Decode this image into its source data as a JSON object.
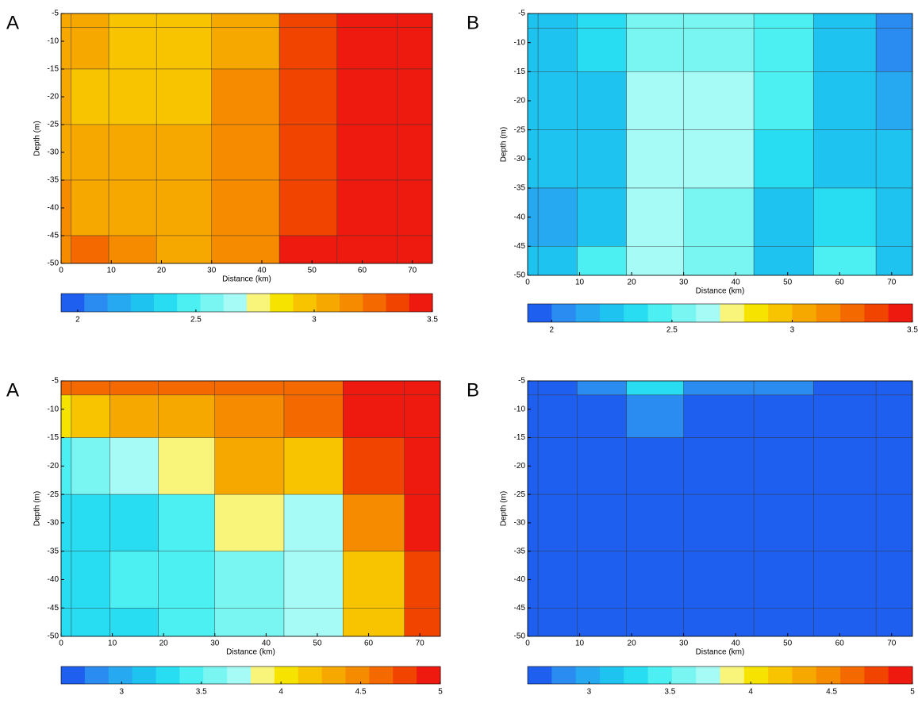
{
  "chart_data": [
    {
      "type": "contour",
      "label": "A",
      "xlabel": "Distance (km)",
      "ylabel": "Depth (m)",
      "x": [
        0,
        4,
        15,
        23,
        37,
        50,
        60,
        74
      ],
      "y": [
        -5,
        -10,
        -20,
        -30,
        -40,
        -50
      ],
      "z": [
        [
          3.05,
          3.02,
          2.95,
          3.0,
          3.1,
          3.4,
          3.45,
          3.45
        ],
        [
          3.05,
          3.02,
          2.93,
          2.98,
          3.1,
          3.35,
          3.45,
          3.45
        ],
        [
          3.05,
          3.0,
          2.93,
          3.0,
          3.12,
          3.35,
          3.5,
          3.48
        ],
        [
          3.08,
          3.05,
          3.02,
          3.05,
          3.15,
          3.38,
          3.48,
          3.48
        ],
        [
          3.12,
          3.1,
          3.08,
          3.08,
          3.18,
          3.4,
          3.48,
          3.48
        ],
        [
          3.2,
          3.25,
          3.15,
          3.1,
          3.2,
          3.42,
          3.48,
          3.48
        ]
      ],
      "xlim": [
        0,
        74
      ],
      "ylim": [
        -50,
        -5
      ],
      "xticks": [
        0,
        10,
        20,
        30,
        40,
        50,
        60,
        70
      ],
      "yticks": [
        -5,
        -10,
        -15,
        -20,
        -25,
        -30,
        -35,
        -40,
        -45,
        -50
      ],
      "clim": [
        1.93,
        3.5
      ],
      "cticks": [
        2,
        2.5,
        3,
        3.5
      ],
      "colors": [
        "#1f5ff0",
        "#2a8bf0",
        "#26a9f0",
        "#1fc3f0",
        "#28dcf2",
        "#4df0f2",
        "#7af6f2",
        "#a6fbf6",
        "#f9f57a",
        "#f6e400",
        "#f8c400",
        "#f7a800",
        "#f68b00",
        "#f46a00",
        "#f04400",
        "#ee1a10"
      ]
    },
    {
      "type": "contour",
      "label": "B",
      "xlabel": "Distance (km)",
      "ylabel": "Depth (m)",
      "x": [
        0,
        4,
        15,
        23,
        37,
        50,
        60,
        74
      ],
      "y": [
        -5,
        -10,
        -20,
        -30,
        -40,
        -50
      ],
      "z": [
        [
          2.3,
          2.3,
          2.35,
          2.55,
          2.55,
          2.4,
          2.2,
          2.0
        ],
        [
          2.3,
          2.3,
          2.35,
          2.55,
          2.55,
          2.4,
          2.25,
          2.05
        ],
        [
          2.3,
          2.25,
          2.3,
          2.62,
          2.6,
          2.4,
          2.3,
          2.15
        ],
        [
          2.2,
          2.2,
          2.3,
          2.62,
          2.6,
          2.35,
          2.3,
          2.2
        ],
        [
          2.1,
          2.15,
          2.3,
          2.6,
          2.55,
          2.2,
          2.35,
          2.25
        ],
        [
          2.2,
          2.3,
          2.45,
          2.6,
          2.55,
          2.3,
          2.4,
          2.3
        ]
      ],
      "xlim": [
        0,
        74
      ],
      "ylim": [
        -50,
        -5
      ],
      "xticks": [
        0,
        10,
        20,
        30,
        40,
        50,
        60,
        70
      ],
      "yticks": [
        -5,
        -10,
        -15,
        -20,
        -25,
        -30,
        -35,
        -40,
        -45,
        -50
      ],
      "clim": [
        1.9,
        3.5
      ],
      "cticks": [
        2,
        2.5,
        3,
        3.5
      ],
      "colors": [
        "#1f5ff0",
        "#2a8bf0",
        "#26a9f0",
        "#1fc3f0",
        "#28dcf2",
        "#4df0f2",
        "#7af6f2",
        "#a6fbf6",
        "#f9f57a",
        "#f6e400",
        "#f8c400",
        "#f7a800",
        "#f68b00",
        "#f46a00",
        "#f04400",
        "#ee1a10"
      ]
    },
    {
      "type": "contour",
      "label": "A",
      "xlabel": "Distance (km)",
      "ylabel": "Depth (m)",
      "x": [
        0,
        4,
        15,
        23,
        37,
        50,
        60,
        74
      ],
      "y": [
        -5,
        -10,
        -20,
        -30,
        -40,
        -50
      ],
      "z": [
        [
          4.6,
          4.7,
          4.6,
          4.7,
          4.6,
          4.7,
          5.0,
          5.0
        ],
        [
          4.0,
          4.2,
          4.3,
          4.4,
          4.5,
          4.6,
          5.0,
          5.0
        ],
        [
          3.5,
          3.6,
          3.7,
          3.9,
          4.3,
          4.2,
          4.8,
          5.0
        ],
        [
          3.35,
          3.3,
          3.35,
          3.5,
          3.9,
          3.7,
          4.5,
          4.9
        ],
        [
          3.3,
          3.3,
          3.4,
          3.45,
          3.6,
          3.7,
          4.2,
          4.8
        ],
        [
          3.3,
          3.3,
          3.35,
          3.4,
          3.55,
          3.7,
          4.2,
          4.8
        ]
      ],
      "xlim": [
        0,
        74
      ],
      "ylim": [
        -50,
        -5
      ],
      "xticks": [
        0,
        10,
        20,
        30,
        40,
        50,
        60,
        70
      ],
      "yticks": [
        -5,
        -10,
        -15,
        -20,
        -25,
        -30,
        -35,
        -40,
        -45,
        -50
      ],
      "clim": [
        2.62,
        5
      ],
      "cticks": [
        3,
        3.5,
        4,
        4.5,
        5
      ],
      "colors": [
        "#1f5ff0",
        "#2a8bf0",
        "#26a9f0",
        "#1fc3f0",
        "#28dcf2",
        "#4df0f2",
        "#7af6f2",
        "#a6fbf6",
        "#f9f57a",
        "#f6e400",
        "#f8c400",
        "#f7a800",
        "#f68b00",
        "#f46a00",
        "#f04400",
        "#ee1a10"
      ]
    },
    {
      "type": "contour",
      "label": "B",
      "xlabel": "Distance (km)",
      "ylabel": "Depth (m)",
      "x": [
        0,
        4,
        15,
        23,
        37,
        50,
        60,
        74
      ],
      "y": [
        -5,
        -10,
        -20,
        -30,
        -40,
        -50
      ],
      "z": [
        [
          2.75,
          2.75,
          2.9,
          3.3,
          2.9,
          2.8,
          2.75,
          2.7
        ],
        [
          2.7,
          2.75,
          2.75,
          2.85,
          2.75,
          2.72,
          2.68,
          2.66
        ],
        [
          2.65,
          2.65,
          2.65,
          2.65,
          2.65,
          2.65,
          2.65,
          2.65
        ],
        [
          2.65,
          2.65,
          2.65,
          2.65,
          2.65,
          2.65,
          2.65,
          2.65
        ],
        [
          2.65,
          2.65,
          2.65,
          2.65,
          2.65,
          2.65,
          2.65,
          2.65
        ],
        [
          2.65,
          2.65,
          2.65,
          2.65,
          2.65,
          2.65,
          2.65,
          2.65
        ]
      ],
      "xlim": [
        0,
        74
      ],
      "ylim": [
        -50,
        -5
      ],
      "xticks": [
        0,
        10,
        20,
        30,
        40,
        50,
        60,
        70
      ],
      "yticks": [
        -5,
        -10,
        -15,
        -20,
        -25,
        -30,
        -35,
        -40,
        -45,
        -50
      ],
      "clim": [
        2.62,
        5
      ],
      "cticks": [
        3,
        3.5,
        4,
        4.5,
        5
      ],
      "colors": [
        "#1f5ff0",
        "#2a8bf0",
        "#26a9f0",
        "#1fc3f0",
        "#28dcf2",
        "#4df0f2",
        "#7af6f2",
        "#a6fbf6",
        "#f9f57a",
        "#f6e400",
        "#f8c400",
        "#f7a800",
        "#f68b00",
        "#f46a00",
        "#f04400",
        "#ee1a10"
      ]
    }
  ]
}
